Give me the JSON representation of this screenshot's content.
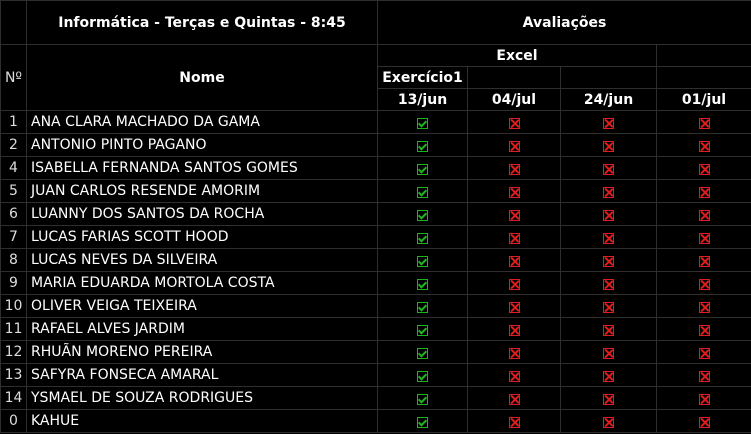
{
  "header": {
    "class_title": "Informática - Terças e Quintas - 8:45",
    "evaluations_title": "Avaliações",
    "number_label": "Nº",
    "name_label": "Nome",
    "excel_label": "Excel",
    "exercise_label": "Exercício1",
    "dates": [
      "13/jun",
      "04/jul",
      "24/jun",
      "01/jul"
    ]
  },
  "colors": {
    "pass": "#1fb31f",
    "fail": "#e01c1c"
  },
  "students": [
    {
      "num": "1",
      "name": "ANA CLARA MACHADO DA GAMA",
      "status": [
        "pass",
        "fail",
        "fail",
        "fail"
      ]
    },
    {
      "num": "2",
      "name": "ANTONIO PINTO PAGANO",
      "status": [
        "pass",
        "fail",
        "fail",
        "fail"
      ]
    },
    {
      "num": "4",
      "name": "ISABELLA FERNANDA SANTOS GOMES",
      "status": [
        "pass",
        "fail",
        "fail",
        "fail"
      ]
    },
    {
      "num": "5",
      "name": "JUAN CARLOS RESENDE AMORIM",
      "status": [
        "pass",
        "fail",
        "fail",
        "fail"
      ]
    },
    {
      "num": "6",
      "name": "LUANNY DOS SANTOS DA ROCHA",
      "status": [
        "pass",
        "fail",
        "fail",
        "fail"
      ]
    },
    {
      "num": "7",
      "name": "LUCAS FARIAS SCOTT HOOD",
      "status": [
        "pass",
        "fail",
        "fail",
        "fail"
      ]
    },
    {
      "num": "8",
      "name": "LUCAS NEVES DA SILVEIRA",
      "status": [
        "pass",
        "fail",
        "fail",
        "fail"
      ]
    },
    {
      "num": "9",
      "name": "MARIA EDUARDA MORTOLA COSTA",
      "status": [
        "pass",
        "fail",
        "fail",
        "fail"
      ]
    },
    {
      "num": "10",
      "name": "OLIVER VEIGA TEIXEIRA",
      "status": [
        "pass",
        "fail",
        "fail",
        "fail"
      ]
    },
    {
      "num": "11",
      "name": "RAFAEL ALVES JARDIM",
      "status": [
        "pass",
        "fail",
        "fail",
        "fail"
      ]
    },
    {
      "num": "12",
      "name": "RHUÃN MORENO PEREIRA",
      "status": [
        "pass",
        "fail",
        "fail",
        "fail"
      ]
    },
    {
      "num": "13",
      "name": "SAFYRA FONSECA AMARAL",
      "status": [
        "pass",
        "fail",
        "fail",
        "fail"
      ]
    },
    {
      "num": "14",
      "name": "YSMAEL DE SOUZA RODRIGUES",
      "status": [
        "pass",
        "fail",
        "fail",
        "fail"
      ]
    },
    {
      "num": "0",
      "name": "KAHUE",
      "status": [
        "pass",
        "fail",
        "fail",
        "fail"
      ]
    }
  ]
}
